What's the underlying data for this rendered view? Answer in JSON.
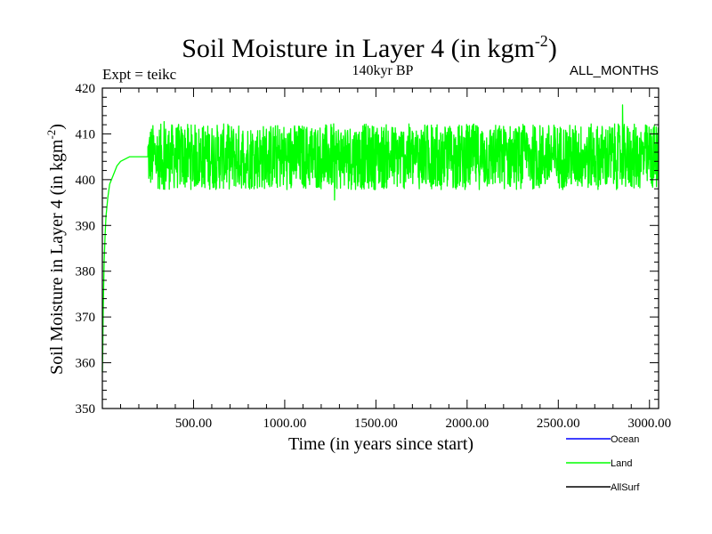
{
  "chart_data": {
    "type": "line",
    "title": "Soil Moisture in Layer 4 (in kgm",
    "title_superscript": "-2",
    "title_close": ")",
    "experiment_label": "Expt = teikc",
    "subtitle": "140kyr BP",
    "months_label": "ALL_MONTHS",
    "xlabel": "Time (in years since start)",
    "ylabel": "Soil Moisture in Layer 4 (in kgm",
    "ylabel_superscript": "-2",
    "ylabel_close": ")",
    "xlim": [
      0,
      3050
    ],
    "ylim": [
      350,
      420
    ],
    "x_ticks": [
      500,
      1000,
      1500,
      2000,
      2500,
      3000
    ],
    "x_tick_labels": [
      "500.00",
      "1000.00",
      "1500.00",
      "2000.00",
      "2500.00",
      "3000.00"
    ],
    "y_ticks": [
      350,
      360,
      370,
      380,
      390,
      400,
      410,
      420
    ],
    "y_tick_labels": [
      "350",
      "360",
      "370",
      "380",
      "390",
      "400",
      "410",
      "420"
    ],
    "spinup": {
      "x": [
        0,
        2,
        5,
        10,
        15,
        20,
        30,
        40,
        60,
        80,
        100,
        150,
        200,
        250
      ],
      "y": [
        358,
        362,
        372,
        382,
        388,
        392,
        396,
        399,
        401,
        403,
        404,
        405,
        405,
        405
      ]
    },
    "equilibrium": {
      "x_start": 250,
      "x_end": 3050,
      "mean": 405,
      "typical_min": 397,
      "typical_max": 413,
      "extreme_min": 392,
      "extreme_max": 418
    },
    "series": [
      {
        "name": "Ocean",
        "color": "#0000ff",
        "has_data": false
      },
      {
        "name": "Land",
        "color": "#00ff00",
        "has_data": true
      },
      {
        "name": "AllSurf",
        "color": "#000000",
        "has_data": false
      }
    ]
  }
}
